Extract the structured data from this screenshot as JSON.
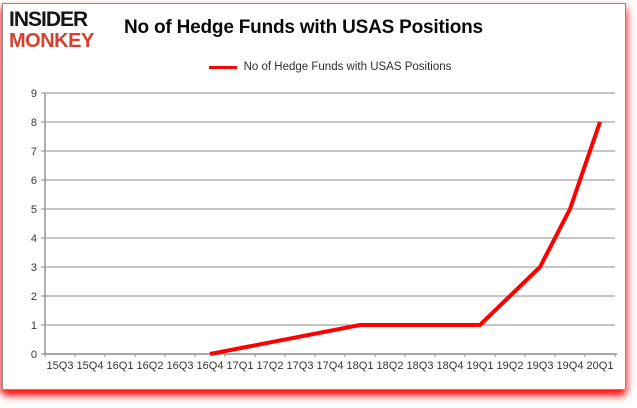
{
  "brand": {
    "line1": "INSIDER",
    "line2": "MONKEY"
  },
  "header": {
    "title": "No of Hedge Funds with USAS Positions"
  },
  "legend": {
    "label": "No of Hedge Funds with USAS Positions"
  },
  "colors": {
    "line": "#fe0000",
    "grid": "#8c8c8c",
    "axis": "#8c8c8c",
    "tick_text": "#363636",
    "brand_black": "#161616",
    "brand_red": "#d7402e",
    "card_border": "#8c8c8c",
    "glow_red": "#ff2a2a"
  },
  "chart_data": {
    "type": "line",
    "title": "No of Hedge Funds with USAS Positions",
    "categories": [
      "15Q3",
      "15Q4",
      "16Q1",
      "16Q2",
      "16Q3",
      "16Q4",
      "17Q1",
      "17Q2",
      "17Q3",
      "17Q4",
      "18Q1",
      "18Q2",
      "18Q3",
      "18Q4",
      "19Q1",
      "19Q2",
      "19Q3",
      "19Q4",
      "20Q1"
    ],
    "series": [
      {
        "name": "No of Hedge Funds with USAS Positions",
        "color": "#fe0000",
        "values": [
          null,
          null,
          null,
          null,
          null,
          0,
          null,
          null,
          null,
          null,
          1,
          1,
          1,
          1,
          1,
          2,
          3,
          5,
          8
        ]
      }
    ],
    "ylim": [
      0,
      9
    ],
    "ytick_step": 1,
    "grid": true,
    "legend_position": "top-center",
    "notes": "line starts at 16Q4; null values are gaps drawn as straight interpolated segments"
  }
}
